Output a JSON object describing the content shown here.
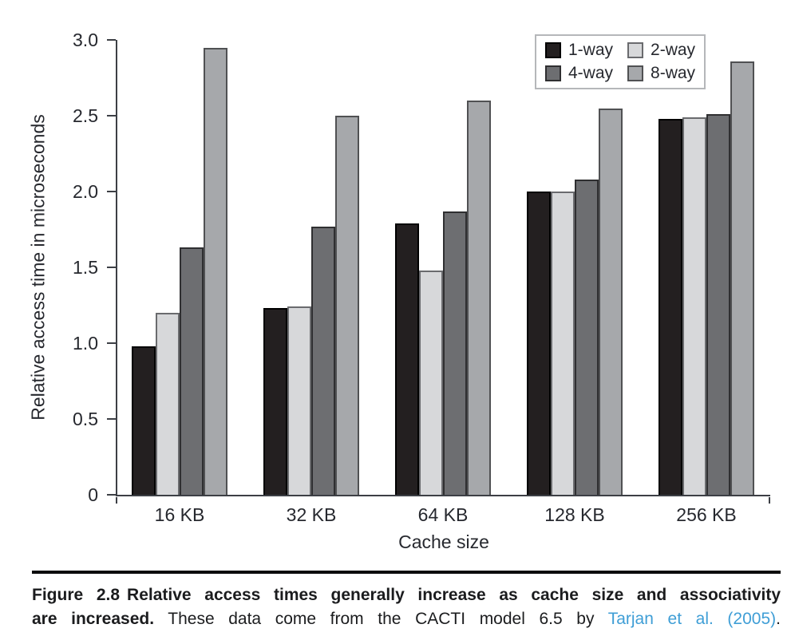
{
  "figure": {
    "caption": {
      "label": "Figure 2.8",
      "line1_text": "Relative access times generally increase as cache size and associativity",
      "line2_bold": "are increased.",
      "line2_text": "These data come from the CACTI model 6.5 by",
      "line2_link": "Tarjan et al. (2005)",
      "line2_end": "."
    },
    "link_color": "#3f9ed6"
  },
  "chart_data": {
    "type": "bar",
    "title": "",
    "xlabel": "Cache size",
    "ylabel": "Relative access time in microseconds",
    "ylim": [
      0,
      3.0
    ],
    "ytick_labels": [
      "0",
      "0.5",
      "1.0",
      "1.5",
      "2.0",
      "2.5",
      "3.0"
    ],
    "categories": [
      "16 KB",
      "32 KB",
      "64 KB",
      "128 KB",
      "256 KB"
    ],
    "series": [
      {
        "name": "1-way",
        "color": "#231f20",
        "border": "#000000",
        "values": [
          0.98,
          1.23,
          1.79,
          2.0,
          2.48
        ]
      },
      {
        "name": "2-way",
        "color": "#d7d8da",
        "border": "#6a6b6e",
        "values": [
          1.2,
          1.24,
          1.48,
          2.0,
          2.49
        ]
      },
      {
        "name": "4-way",
        "color": "#6d6e71",
        "border": "#2f2f31",
        "values": [
          1.63,
          1.77,
          1.87,
          2.08,
          2.51
        ]
      },
      {
        "name": "8-way",
        "color": "#a6a8ab",
        "border": "#505153",
        "values": [
          2.95,
          2.5,
          2.6,
          2.55,
          2.86
        ]
      }
    ],
    "legend_position": "top-right",
    "grid": false,
    "axis_color": "#3c3f45"
  }
}
